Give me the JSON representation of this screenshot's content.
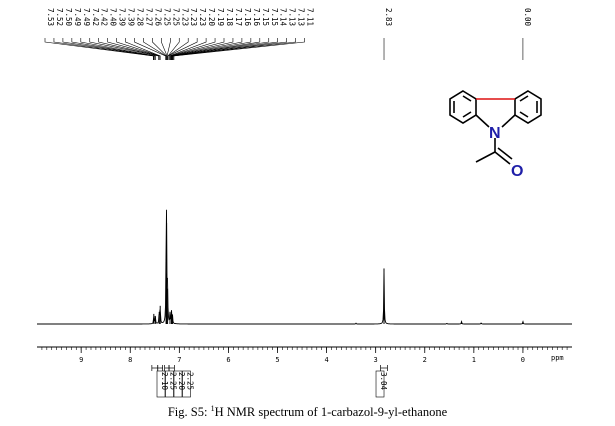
{
  "chart_data": {
    "type": "line",
    "xunit": "ppm",
    "xlim": [
      9.9,
      -1.0
    ],
    "x_reversed": true,
    "ticks": [
      9,
      8,
      7,
      6,
      5,
      4,
      3,
      2,
      1,
      0
    ],
    "tick_labels": [
      "9",
      "8",
      "7",
      "6",
      "5",
      "4",
      "3",
      "2",
      "1",
      "0"
    ],
    "peak_labels": [
      "7.53",
      "7.52",
      "7.50",
      "7.49",
      "7.49",
      "7.42",
      "7.42",
      "7.40",
      "7.39",
      "7.39",
      "7.28",
      "7.27",
      "7.26",
      "7.25",
      "7.25",
      "7.23",
      "7.23",
      "7.23",
      "7.20",
      "7.19",
      "7.18",
      "7.17",
      "7.16",
      "7.16",
      "7.15",
      "7.15",
      "7.14",
      "7.13",
      "7.13",
      "7.11",
      "2.83",
      "0.00"
    ],
    "peaks": [
      {
        "ppm": 7.52,
        "height": 0.1
      },
      {
        "ppm": 7.49,
        "height": 0.08
      },
      {
        "ppm": 7.41,
        "height": 0.12
      },
      {
        "ppm": 7.39,
        "height": 0.18
      },
      {
        "ppm": 7.27,
        "height": 0.5
      },
      {
        "ppm": 7.26,
        "height": 1.0
      },
      {
        "ppm": 7.24,
        "height": 0.35
      },
      {
        "ppm": 7.19,
        "height": 0.1
      },
      {
        "ppm": 7.16,
        "height": 0.12
      },
      {
        "ppm": 7.14,
        "height": 0.08
      },
      {
        "ppm": 2.83,
        "height": 0.55
      },
      {
        "ppm": 1.25,
        "height": 0.025
      },
      {
        "ppm": 0.85,
        "height": 0.012
      },
      {
        "ppm": 0.0,
        "height": 0.025
      },
      {
        "ppm": 3.4,
        "height": 0.008
      },
      {
        "ppm": 1.55,
        "height": 0.008
      }
    ],
    "integrals": [
      {
        "label": "2.10",
        "from": 7.56,
        "to": 7.44
      },
      {
        "label": "2.25",
        "from": 7.44,
        "to": 7.34
      },
      {
        "label": "2.20",
        "from": 7.3,
        "to": 7.21
      },
      {
        "label": "2.25",
        "from": 7.21,
        "to": 7.1
      },
      {
        "label": "3.04",
        "from": 2.9,
        "to": 2.76
      }
    ]
  },
  "molecule": {
    "hetero_atom": "N",
    "carbonyl_atom": "O"
  },
  "caption": {
    "prefix": "Fig. S5: ",
    "superscript": "1",
    "text": "H NMR spectrum of 1-carbazol-9-yl-ethanone"
  }
}
